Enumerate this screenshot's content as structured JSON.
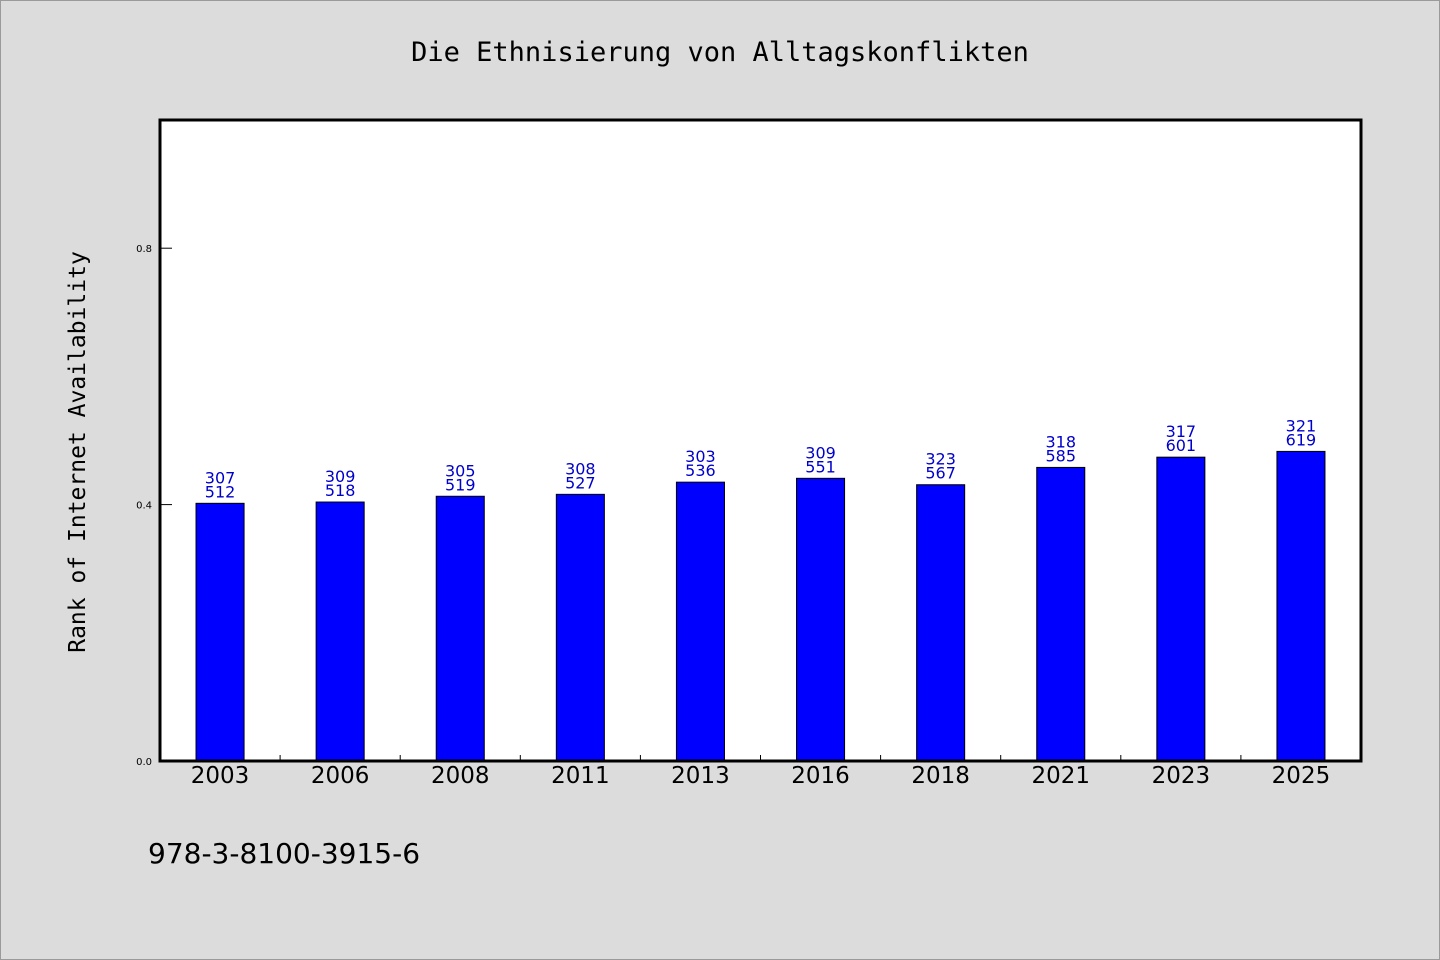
{
  "chart_data": {
    "type": "bar",
    "title": "Die Ethnisierung von Alltagskonflikten",
    "xlabel": "",
    "ylabel": "Rank of Internet Availability",
    "categories": [
      "2003",
      "2006",
      "2008",
      "2011",
      "2013",
      "2016",
      "2018",
      "2021",
      "2023",
      "2025"
    ],
    "values": [
      0.402,
      0.404,
      0.413,
      0.416,
      0.435,
      0.441,
      0.431,
      0.458,
      0.474,
      0.483
    ],
    "data_labels_top": [
      "307",
      "309",
      "305",
      "308",
      "303",
      "309",
      "323",
      "318",
      "317",
      "321"
    ],
    "data_labels_bottom": [
      "512",
      "518",
      "519",
      "527",
      "536",
      "551",
      "567",
      "585",
      "601",
      "619"
    ],
    "ylim": [
      0,
      1.0
    ],
    "yticks": [
      0.0,
      0.4,
      0.8
    ],
    "ytick_labels": [
      "0.0",
      "0.4",
      "0.8"
    ],
    "grid": false,
    "legend": "none",
    "colors": {
      "bar": "#0000ff",
      "label": "#0000cc",
      "background": "#dcdcdc",
      "plot_bg": "#ffffff"
    }
  },
  "footer": {
    "text": "978-3-8100-3915-6"
  }
}
